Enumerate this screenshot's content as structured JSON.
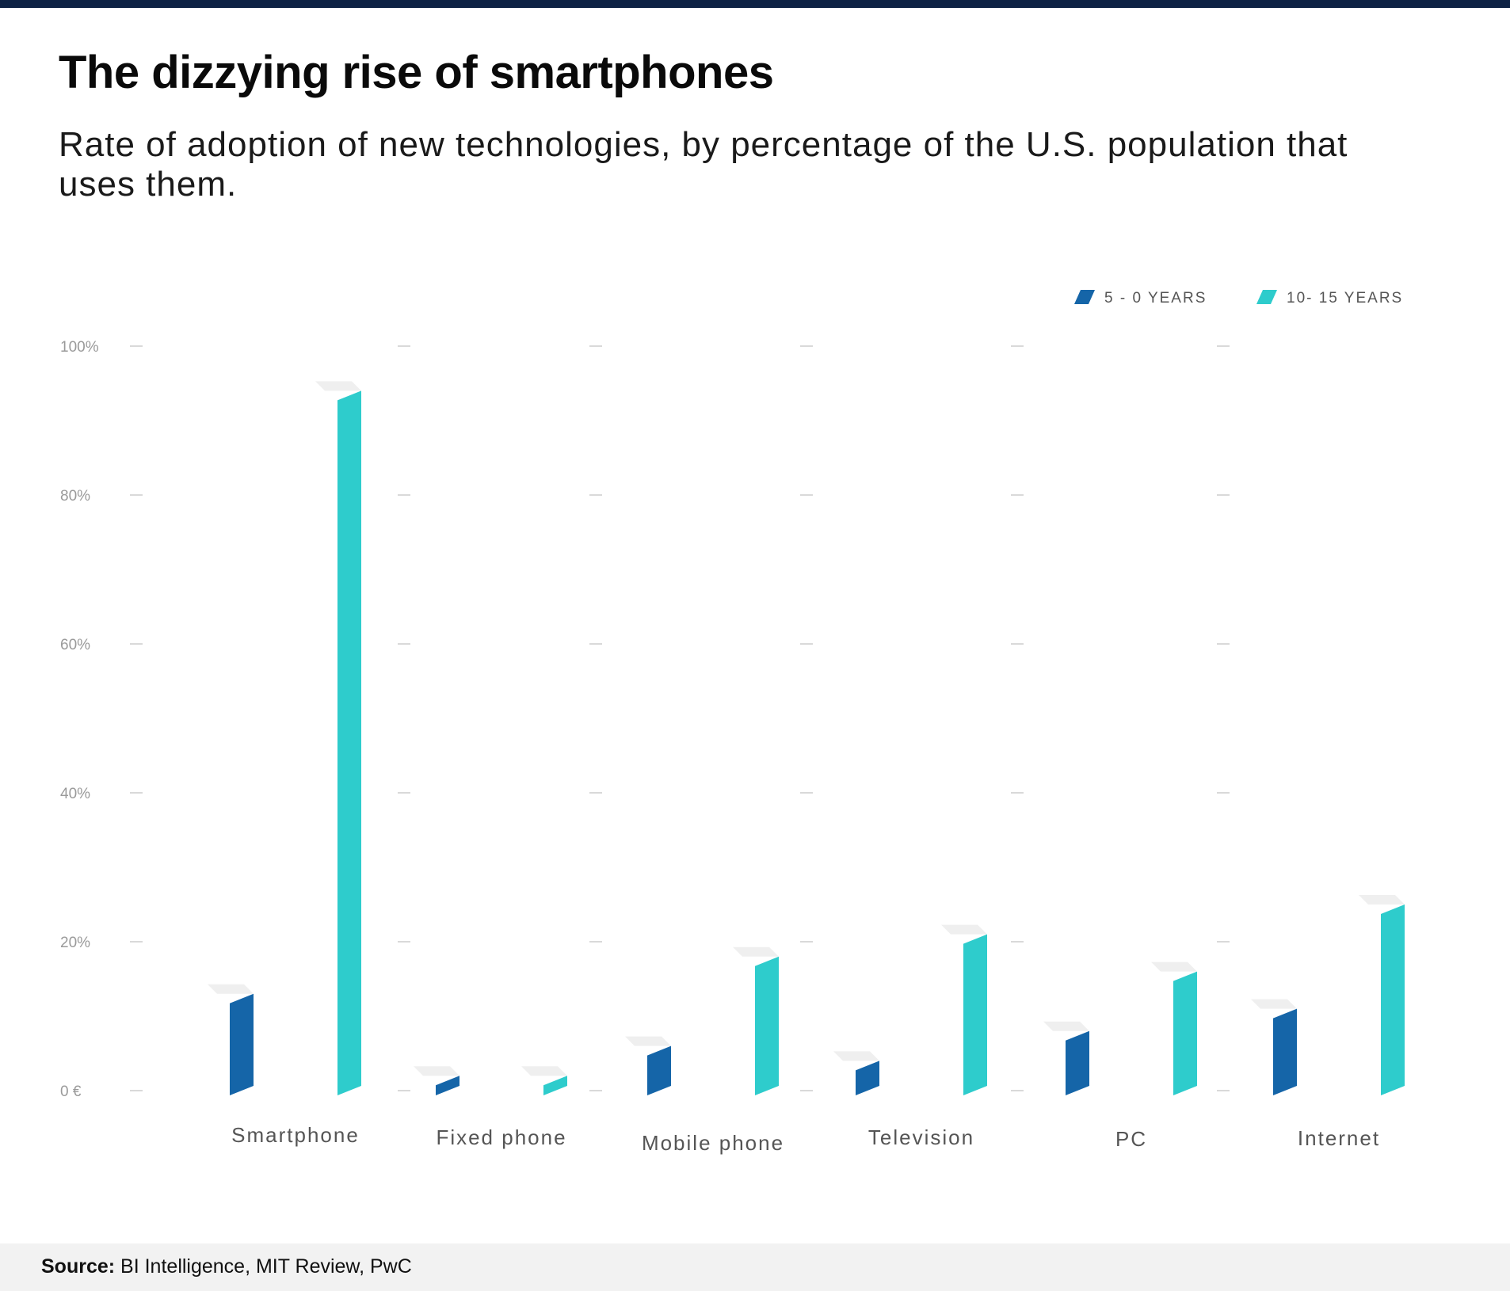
{
  "header": {
    "title": "The dizzying rise of smartphones",
    "subtitle": "Rate of adoption of new technologies, by percentage of the U.S. population that uses them."
  },
  "footer": {
    "source_label": "Source:",
    "source_text": "BI Intelligence, MIT Review, PwC"
  },
  "colors": {
    "series1": "#1565a8",
    "series2": "#2ecccc",
    "cap": "#efefef",
    "grid": "#cccccc"
  },
  "chart_data": {
    "type": "bar",
    "title": "The dizzying rise of smartphones",
    "xlabel": "",
    "ylabel": "",
    "ylim": [
      0,
      100
    ],
    "yticks": [
      0,
      20,
      40,
      60,
      80,
      100
    ],
    "ytick_labels": [
      "0 €",
      "20%",
      "40%",
      "60%",
      "80%",
      "100%"
    ],
    "categories": [
      "Smartphone",
      "Fixed phone",
      "Mobile phone",
      "Television",
      "PC",
      "Internet"
    ],
    "series": [
      {
        "name": "5 - 0  YEARS",
        "values": [
          13,
          2,
          6,
          4,
          8,
          11
        ]
      },
      {
        "name": "10- 15 YEARS",
        "values": [
          94,
          2,
          18,
          21,
          16,
          25
        ]
      }
    ],
    "legend_position": "top-right",
    "grid": false
  }
}
